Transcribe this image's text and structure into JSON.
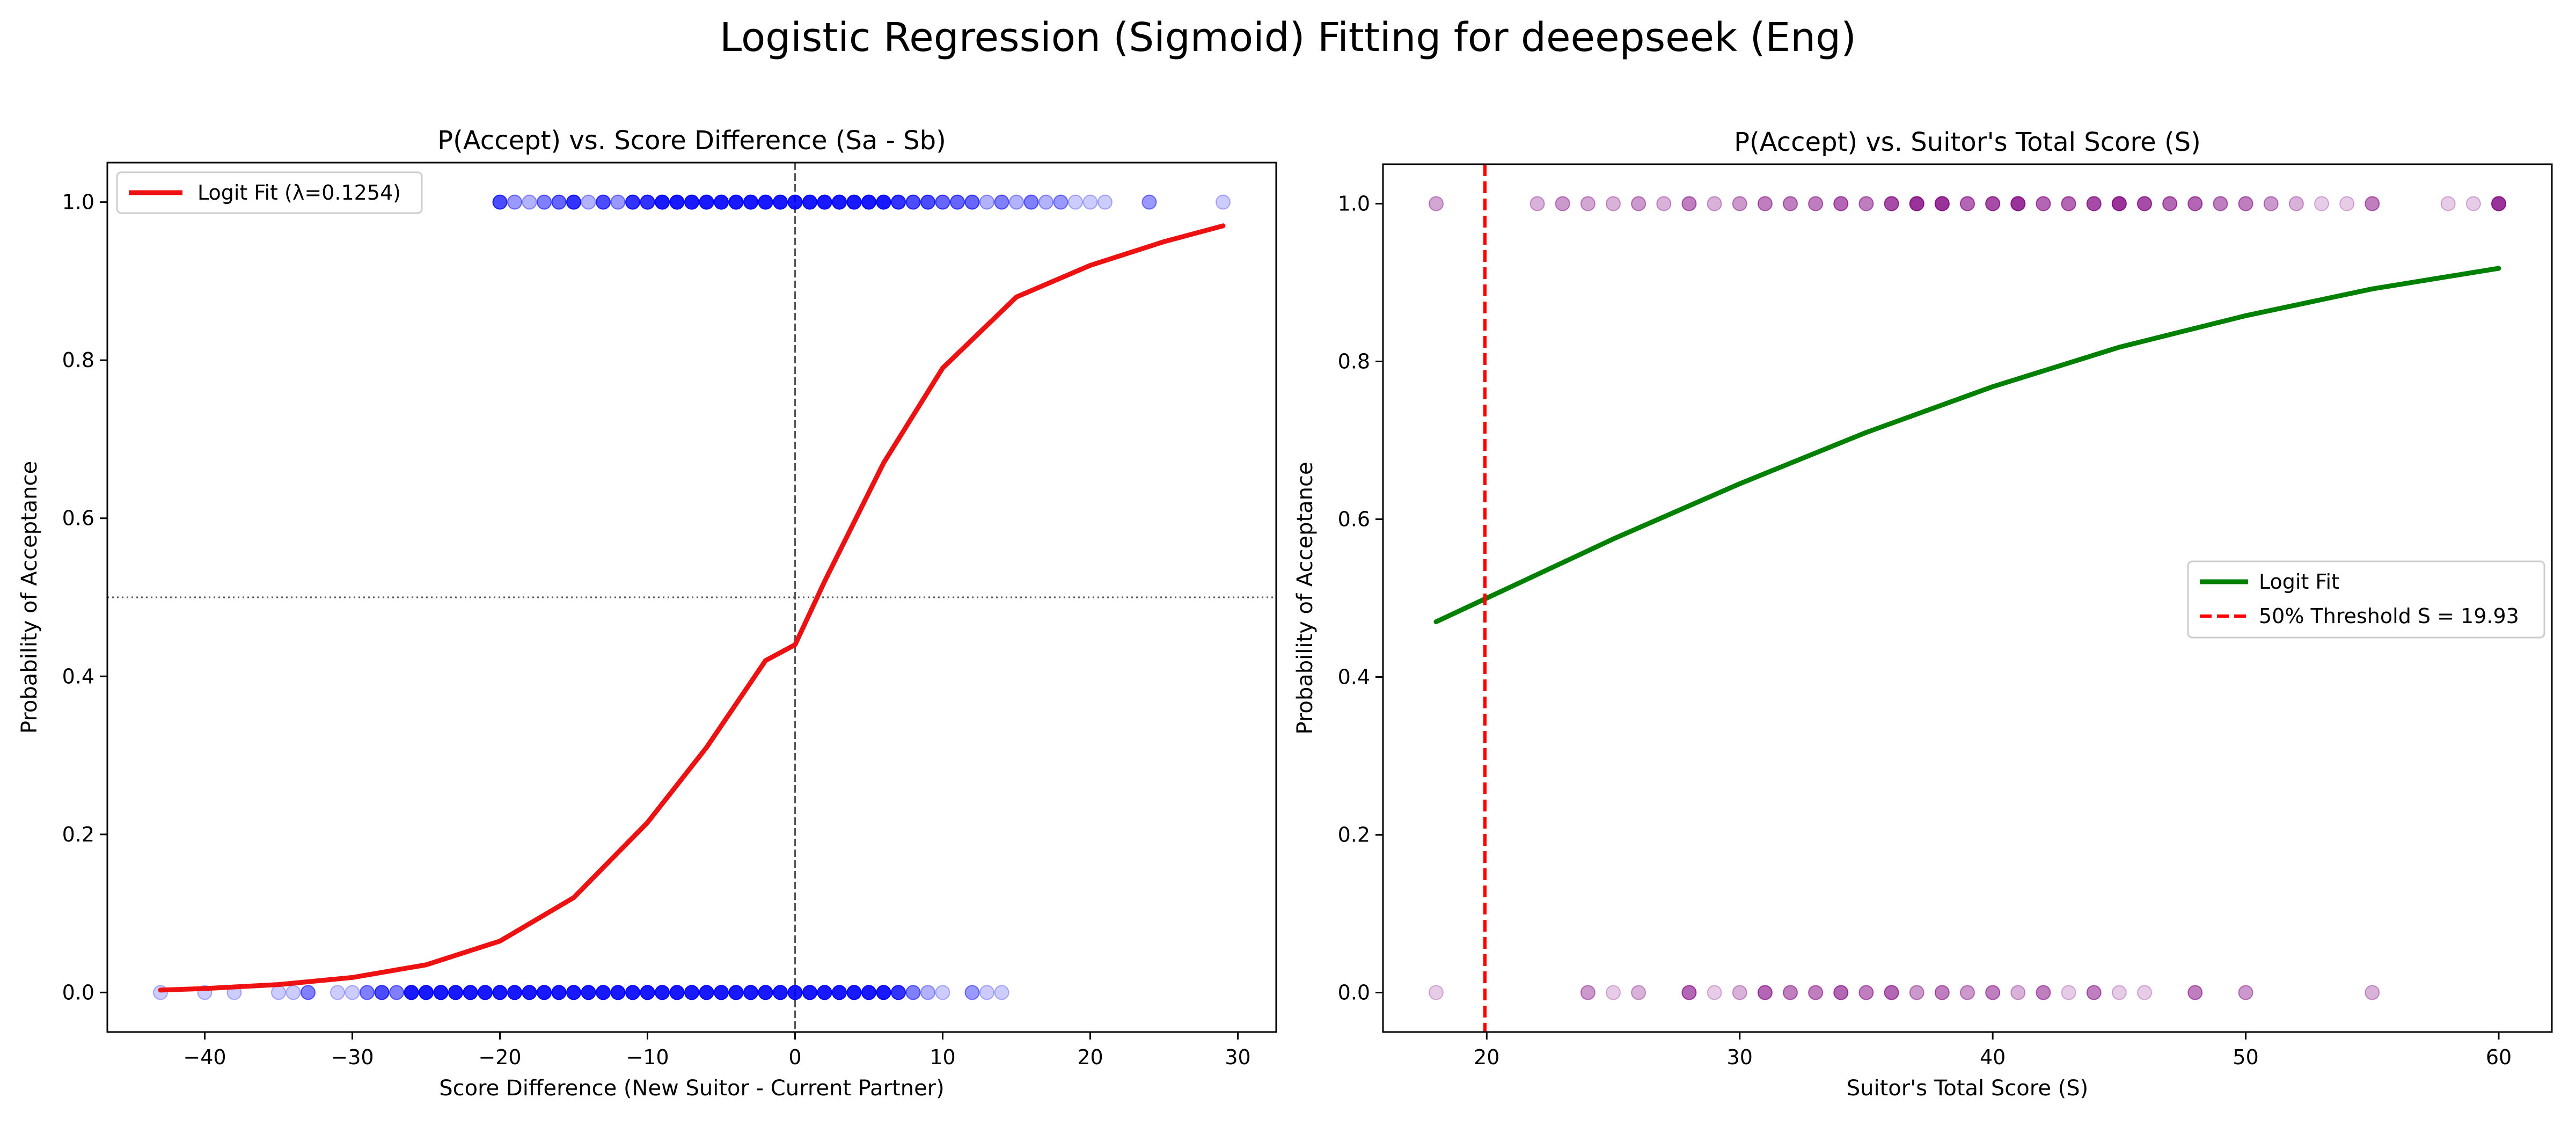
{
  "figure": {
    "suptitle": "Logistic Regression (Sigmoid) Fitting for deeepseek (Eng)"
  },
  "chart_data": [
    {
      "type": "scatter",
      "title": "P(Accept) vs. Score Difference (Sa - Sb)",
      "xlabel": "Score Difference (New Suitor - Current Partner)",
      "ylabel": "Probability of Acceptance",
      "xlim": [
        -46.6,
        32.6
      ],
      "ylim": [
        -0.05,
        1.05
      ],
      "xticks": [
        -40,
        -30,
        -20,
        -10,
        0,
        10,
        20,
        30
      ],
      "yticks": [
        0.0,
        0.2,
        0.4,
        0.6,
        0.8,
        1.0
      ],
      "xtick_labels": [
        "−40",
        "−30",
        "−20",
        "−10",
        "0",
        "10",
        "20",
        "30"
      ],
      "ytick_labels": [
        "0.0",
        "0.2",
        "0.4",
        "0.6",
        "0.8",
        "1.0"
      ],
      "grid": false,
      "legend_position": "upper-left",
      "colors": {
        "points": "#0000ff",
        "fit": "#ee1111",
        "ref_lines": "#555555"
      },
      "reference_lines": {
        "vertical_x": 0,
        "horizontal_y": 0.5
      },
      "fit": {
        "name": "Logit Fit (λ=0.1254)",
        "x": [
          -43,
          -40,
          -35,
          -30,
          -25,
          -20,
          -15,
          -10,
          -6,
          -2,
          0,
          2,
          6,
          10,
          15,
          20,
          25,
          29
        ],
        "y": [
          0.003,
          0.005,
          0.01,
          0.019,
          0.035,
          0.065,
          0.12,
          0.215,
          0.31,
          0.42,
          0.44,
          0.52,
          0.67,
          0.79,
          0.88,
          0.92,
          0.95,
          0.97
        ]
      },
      "points_accept": {
        "x": [
          -20,
          -19,
          -18,
          -17,
          -16,
          -15,
          -14,
          -13,
          -12,
          -11,
          -10,
          -9,
          -8,
          -7,
          -6,
          -5,
          -4,
          -3,
          -2,
          -1,
          0,
          1,
          2,
          3,
          4,
          5,
          6,
          7,
          8,
          9,
          10,
          11,
          12,
          13,
          14,
          15,
          16,
          17,
          18,
          19,
          20,
          21,
          24,
          29
        ],
        "y": [
          1,
          1,
          1,
          1,
          1,
          1,
          1,
          1,
          1,
          1,
          1,
          1,
          1,
          1,
          1,
          1,
          1,
          1,
          1,
          1,
          1,
          1,
          1,
          1,
          1,
          1,
          1,
          1,
          1,
          1,
          1,
          1,
          1,
          1,
          1,
          1,
          1,
          1,
          1,
          1,
          1,
          1,
          1,
          1
        ],
        "alpha": [
          0.7,
          0.4,
          0.3,
          0.5,
          0.6,
          0.8,
          0.3,
          0.7,
          0.4,
          0.8,
          0.8,
          0.9,
          0.9,
          0.9,
          0.9,
          0.9,
          0.9,
          0.9,
          0.9,
          0.9,
          0.9,
          0.9,
          0.9,
          0.9,
          0.9,
          0.9,
          0.9,
          0.8,
          0.7,
          0.7,
          0.6,
          0.6,
          0.6,
          0.3,
          0.5,
          0.3,
          0.5,
          0.3,
          0.4,
          0.2,
          0.2,
          0.2,
          0.4,
          0.2
        ]
      },
      "points_reject": {
        "x": [
          -43,
          -40,
          -38,
          -35,
          -34,
          -33,
          -31,
          -30,
          -29,
          -28,
          -27,
          -26,
          -25,
          -24,
          -23,
          -22,
          -21,
          -20,
          -19,
          -18,
          -17,
          -16,
          -15,
          -14,
          -13,
          -12,
          -11,
          -10,
          -9,
          -8,
          -7,
          -6,
          -5,
          -4,
          -3,
          -2,
          -1,
          0,
          1,
          2,
          3,
          4,
          5,
          6,
          7,
          8,
          9,
          10,
          12,
          13,
          14
        ],
        "y": [
          0,
          0,
          0,
          0,
          0,
          0,
          0,
          0,
          0,
          0,
          0,
          0,
          0,
          0,
          0,
          0,
          0,
          0,
          0,
          0,
          0,
          0,
          0,
          0,
          0,
          0,
          0,
          0,
          0,
          0,
          0,
          0,
          0,
          0,
          0,
          0,
          0,
          0,
          0,
          0,
          0,
          0,
          0,
          0,
          0,
          0,
          0,
          0,
          0,
          0,
          0
        ],
        "alpha": [
          0.2,
          0.2,
          0.2,
          0.2,
          0.2,
          0.5,
          0.2,
          0.2,
          0.5,
          0.7,
          0.5,
          0.9,
          0.9,
          0.9,
          0.9,
          0.9,
          0.9,
          0.9,
          0.9,
          0.9,
          0.9,
          0.9,
          0.9,
          0.9,
          0.9,
          0.9,
          0.9,
          0.9,
          0.9,
          0.9,
          0.9,
          0.9,
          0.9,
          0.9,
          0.9,
          0.9,
          0.9,
          0.9,
          0.9,
          0.9,
          0.9,
          0.9,
          0.9,
          0.9,
          0.8,
          0.5,
          0.3,
          0.2,
          0.4,
          0.2,
          0.2
        ]
      }
    },
    {
      "type": "scatter",
      "title": "P(Accept) vs. Suitor's Total Score (S)",
      "xlabel": "Suitor's Total Score (S)",
      "ylabel": "Probability of Acceptance",
      "xlim": [
        15.9,
        62.1
      ],
      "ylim": [
        -0.05,
        1.05
      ],
      "xticks": [
        20,
        30,
        40,
        50,
        60
      ],
      "yticks": [
        0.0,
        0.2,
        0.4,
        0.6,
        0.8,
        1.0
      ],
      "xtick_labels": [
        "20",
        "30",
        "40",
        "50",
        "60"
      ],
      "ytick_labels": [
        "0.0",
        "0.2",
        "0.4",
        "0.6",
        "0.8",
        "1.0"
      ],
      "grid": false,
      "legend_position": "center-right",
      "colors": {
        "points": "#800080",
        "fit": "#008000",
        "threshold": "#ff0000"
      },
      "threshold": {
        "name": "50% Threshold S = 19.93",
        "x": 19.93
      },
      "fit": {
        "name": "Logit Fit",
        "x": [
          18,
          20,
          25,
          30,
          35,
          40,
          45,
          50,
          55,
          60
        ],
        "y": [
          0.47,
          0.5,
          0.575,
          0.645,
          0.71,
          0.768,
          0.818,
          0.858,
          0.892,
          0.918
        ]
      },
      "points_accept": {
        "x": [
          18,
          22,
          23,
          24,
          25,
          26,
          27,
          28,
          29,
          30,
          31,
          32,
          33,
          34,
          35,
          36,
          37,
          38,
          39,
          40,
          41,
          42,
          43,
          44,
          45,
          46,
          47,
          48,
          49,
          50,
          51,
          52,
          53,
          54,
          55,
          58,
          59,
          60
        ],
        "y": [
          1,
          1,
          1,
          1,
          1,
          1,
          1,
          1,
          1,
          1,
          1,
          1,
          1,
          1,
          1,
          1,
          1,
          1,
          1,
          1,
          1,
          1,
          1,
          1,
          1,
          1,
          1,
          1,
          1,
          1,
          1,
          1,
          1,
          1,
          1,
          1,
          1,
          1
        ],
        "alpha": [
          0.35,
          0.3,
          0.4,
          0.35,
          0.3,
          0.4,
          0.3,
          0.5,
          0.3,
          0.4,
          0.5,
          0.5,
          0.5,
          0.6,
          0.5,
          0.7,
          0.8,
          0.8,
          0.6,
          0.7,
          0.8,
          0.6,
          0.6,
          0.7,
          0.8,
          0.7,
          0.6,
          0.6,
          0.5,
          0.5,
          0.4,
          0.3,
          0.2,
          0.2,
          0.5,
          0.2,
          0.2,
          0.8
        ]
      },
      "points_reject": {
        "x": [
          18,
          24,
          25,
          26,
          28,
          29,
          30,
          31,
          32,
          33,
          34,
          35,
          36,
          37,
          38,
          39,
          40,
          41,
          42,
          43,
          44,
          45,
          46,
          48,
          50,
          55
        ],
        "y": [
          0,
          0,
          0,
          0,
          0,
          0,
          0,
          0,
          0,
          0,
          0,
          0,
          0,
          0,
          0,
          0,
          0,
          0,
          0,
          0,
          0,
          0,
          0,
          0,
          0,
          0
        ],
        "alpha": [
          0.2,
          0.4,
          0.2,
          0.3,
          0.6,
          0.2,
          0.3,
          0.6,
          0.5,
          0.5,
          0.6,
          0.5,
          0.6,
          0.4,
          0.5,
          0.4,
          0.5,
          0.3,
          0.5,
          0.2,
          0.5,
          0.2,
          0.2,
          0.5,
          0.4,
          0.3
        ]
      }
    }
  ]
}
